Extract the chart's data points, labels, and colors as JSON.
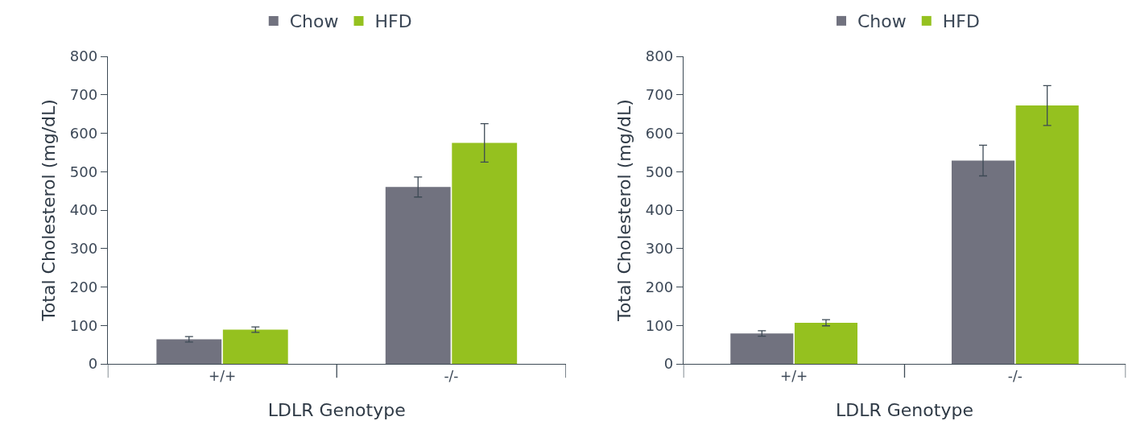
{
  "chart_data": [
    {
      "type": "bar",
      "categories": [
        "+/+",
        "-/-"
      ],
      "xlabel": "LDLR Genotype",
      "ylabel": "Total Cholesterol (mg/dL)",
      "ylim": [
        0,
        800
      ],
      "yticks": [
        0,
        100,
        200,
        300,
        400,
        500,
        600,
        700,
        800
      ],
      "legend": "top",
      "series": [
        {
          "name": "Chow",
          "color": "#71727f",
          "values": [
            64,
            460
          ],
          "errors": [
            7,
            26
          ]
        },
        {
          "name": "HFD",
          "color": "#95c11f",
          "values": [
            89,
            575
          ],
          "errors": [
            7,
            50
          ]
        }
      ]
    },
    {
      "type": "bar",
      "categories": [
        "+/+",
        "-/-"
      ],
      "xlabel": "LDLR Genotype",
      "ylabel": "Total Cholesterol (mg/dL)",
      "ylim": [
        0,
        800
      ],
      "yticks": [
        0,
        100,
        200,
        300,
        400,
        500,
        600,
        700,
        800
      ],
      "legend": "top",
      "series": [
        {
          "name": "Chow",
          "color": "#71727f",
          "values": [
            79,
            529
          ],
          "errors": [
            7,
            40
          ]
        },
        {
          "name": "HFD",
          "color": "#95c11f",
          "values": [
            107,
            672
          ],
          "errors": [
            8,
            52
          ]
        }
      ]
    }
  ]
}
